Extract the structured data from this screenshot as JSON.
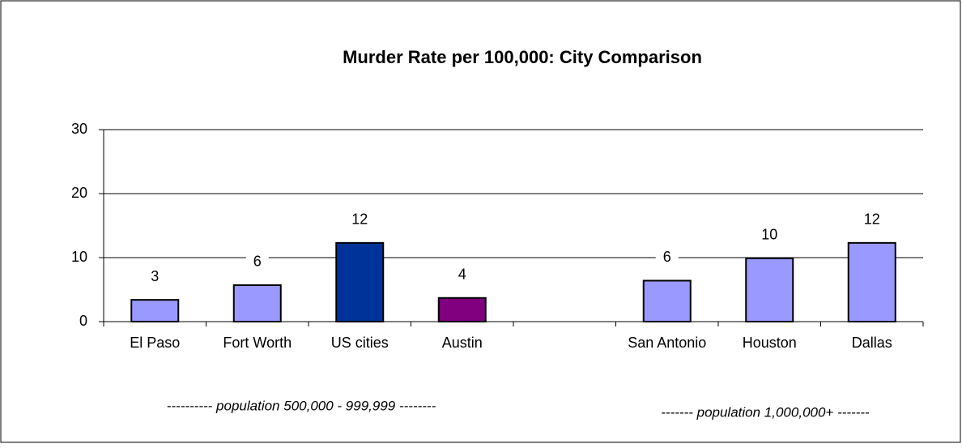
{
  "chart_data": {
    "type": "bar",
    "title": "Murder Rate per 100,000: City Comparison",
    "categories": [
      "El Paso",
      "Fort Worth",
      "US cities",
      "Austin",
      null,
      "San Antonio",
      "Houston",
      "Dallas"
    ],
    "values": [
      3.4,
      5.7,
      12.3,
      3.7,
      null,
      6.4,
      9.9,
      12.3
    ],
    "value_labels": [
      "3",
      "6",
      "12",
      "4",
      null,
      "6",
      "10",
      "12"
    ],
    "colors": [
      "#9999ff",
      "#9999ff",
      "#003399",
      "#800080",
      null,
      "#9999ff",
      "#9999ff",
      "#9999ff"
    ],
    "ylim": [
      0,
      30
    ],
    "yticks": [
      0,
      10,
      20,
      30
    ],
    "grid": true,
    "annotations": [
      "---------- population 500,000 - 999,999 --------",
      "------- population 1,000,000+ -------"
    ]
  }
}
